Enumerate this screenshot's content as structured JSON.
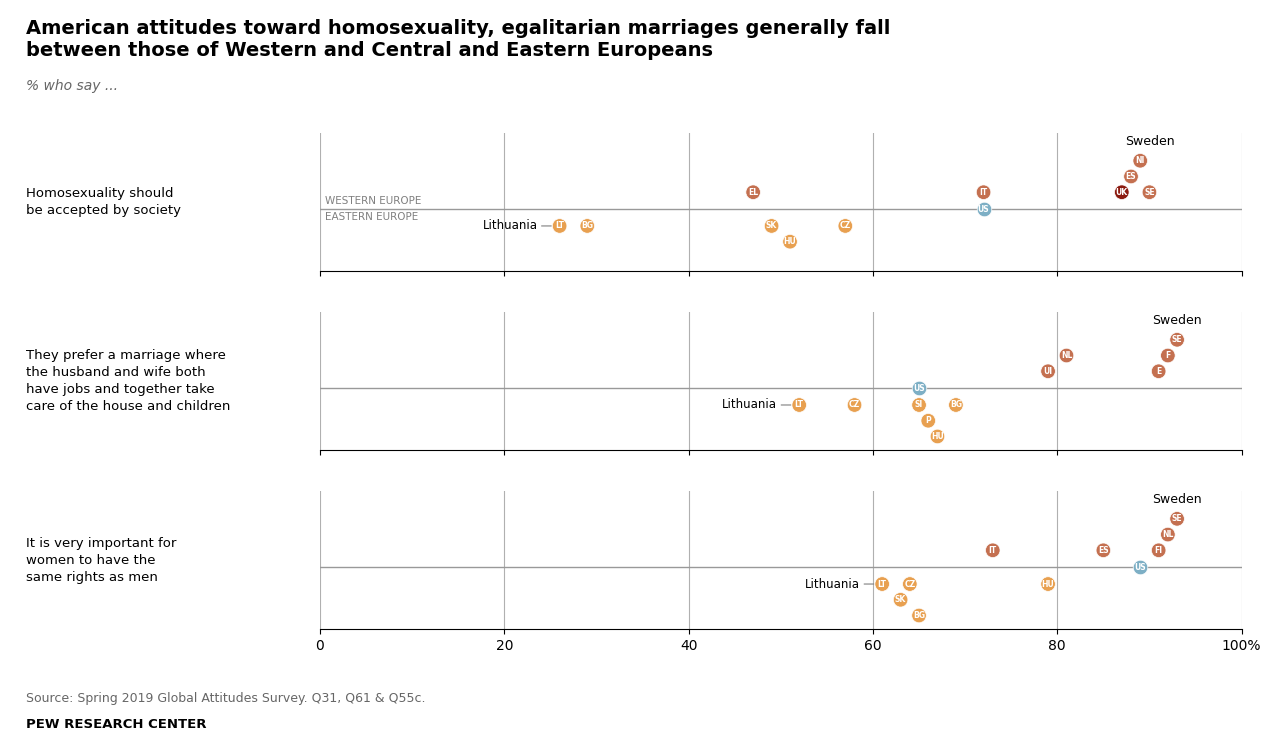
{
  "title": "American attitudes toward homosexuality, egalitarian marriages generally fall\nbetween those of Western and Central and Eastern Europeans",
  "subtitle": "% who say ...",
  "annotations": [
    "Source: Spring 2019 Global Attitudes Survey. Q31, Q61 & Q55c.",
    "PEW RESEARCH CENTER"
  ],
  "chart_data": [
    {
      "type": "dot",
      "title": "Homosexuality should\nbe accepted by society",
      "xlim": [
        0,
        100
      ],
      "xticks": [
        0,
        20,
        40,
        60,
        80,
        {
          "value": 100,
          "label": "100%"
        }
      ],
      "grid": true,
      "tick_labels": false,
      "series": [
        {
          "name": "WESTERN EUROPE",
          "values": [
            47,
            72,
            87,
            88,
            89,
            90
          ],
          "labels": [
            "EL",
            "IT",
            "UK",
            "ES",
            "NI",
            "SE"
          ],
          "colors": [
            "#c47050",
            "#c47050",
            "#8b1a10",
            "#c47050",
            "#c47050",
            "#c47050"
          ]
        },
        {
          "name": "EASTERN EUROPE",
          "values": [
            26,
            29,
            49,
            51,
            57
          ],
          "labels": [
            "LT",
            "BG",
            "SK",
            "HU",
            "CZ"
          ],
          "color": "#e8a050"
        },
        {
          "values": [
            72
          ],
          "labels": [
            "US"
          ],
          "color": "#7dafc5"
        }
      ],
      "annotations": [
        {
          "text": "Sweden",
          "x": 90
        },
        {
          "text": "Lithuania",
          "x": 26
        }
      ]
    },
    {
      "type": "dot",
      "title": "They prefer a marriage where\nthe husband and wife both\nhave jobs and together take\ncare of the house and children",
      "xlim": [
        0,
        100
      ],
      "xticks": [
        0,
        20,
        40,
        60,
        80,
        {
          "value": 100,
          "label": "100%"
        }
      ],
      "grid": true,
      "tick_labels": false,
      "series": [
        {
          "values": [
            79,
            81,
            91,
            92,
            93
          ],
          "labels": [
            "UI",
            "NL",
            "E",
            "F",
            "SE"
          ],
          "color": "#c47050"
        },
        {
          "values": [
            52,
            58,
            65,
            66,
            67,
            69
          ],
          "labels": [
            "LT",
            "CZ",
            "SI",
            "P",
            "HU",
            "BG"
          ],
          "color": "#e8a050"
        },
        {
          "values": [
            65
          ],
          "labels": [
            "US"
          ],
          "color": "#7dafc5"
        }
      ],
      "annotations": [
        {
          "text": "Sweden",
          "x": 93
        },
        {
          "text": "Lithuania",
          "x": 52
        }
      ]
    },
    {
      "type": "dot",
      "title": "It is very important for\nwomen to have the\nsame rights as men",
      "xlim": [
        0,
        100
      ],
      "xticks": [
        0,
        20,
        40,
        60,
        80,
        {
          "value": 100,
          "label": "100%"
        }
      ],
      "grid": true,
      "tick_labels": "x",
      "series": [
        {
          "values": [
            73,
            85,
            91,
            92,
            93
          ],
          "labels": [
            "IT",
            "ES",
            "FI",
            "NL",
            "SE"
          ],
          "color": "#c47050"
        },
        {
          "values": [
            61,
            63,
            64,
            65,
            79
          ],
          "labels": [
            "LT",
            "SK",
            "CZ",
            "BG",
            "HU"
          ],
          "color": "#e8a050"
        },
        {
          "values": [
            89
          ],
          "labels": [
            "US"
          ],
          "color": "#7dafc5"
        }
      ],
      "annotations": [
        {
          "text": "Sweden",
          "x": 93
        },
        {
          "text": "Lithuania",
          "x": 61
        }
      ]
    }
  ]
}
